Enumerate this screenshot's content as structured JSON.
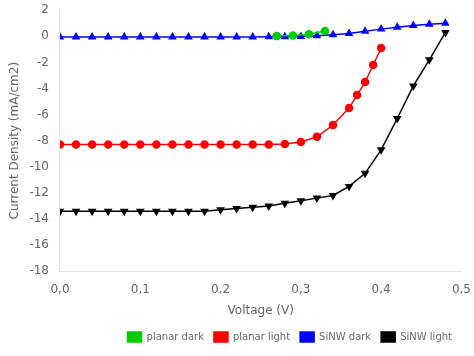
{
  "chart_data": {
    "type": "line",
    "xlabel": "Voltage (V)",
    "ylabel": "Current Density (mA/cm2)",
    "xlim": [
      0,
      0.5
    ],
    "ylim": [
      -18,
      2
    ],
    "xticks": [
      {
        "value": 0,
        "label": "0,0"
      },
      {
        "value": 0.1,
        "label": "0,1"
      },
      {
        "value": 0.2,
        "label": "0,2"
      },
      {
        "value": 0.3,
        "label": "0,3"
      },
      {
        "value": 0.4,
        "label": "0,4"
      },
      {
        "value": 0.5,
        "label": "0,5"
      }
    ],
    "yticks": [
      -18,
      -16,
      -14,
      -12,
      -10,
      -8,
      -6,
      -4,
      -2,
      0,
      2
    ],
    "grid": false,
    "legend": "lower right",
    "series": [
      {
        "name": "planar dark",
        "color": "#00cc00",
        "marker": "circle",
        "x": [
          0.27,
          0.29,
          0.31,
          0.33
        ],
        "values": [
          0.02,
          0.06,
          0.15,
          0.4
        ]
      },
      {
        "name": "planar light",
        "color": "#ff0000",
        "marker": "circle",
        "x": [
          0.0,
          0.02,
          0.04,
          0.06,
          0.08,
          0.1,
          0.12,
          0.14,
          0.16,
          0.18,
          0.2,
          0.22,
          0.24,
          0.26,
          0.28,
          0.3,
          0.32,
          0.34,
          0.36,
          0.37,
          0.38,
          0.39,
          0.4
        ],
        "values": [
          -8.3,
          -8.3,
          -8.3,
          -8.3,
          -8.3,
          -8.3,
          -8.3,
          -8.3,
          -8.3,
          -8.3,
          -8.3,
          -8.3,
          -8.3,
          -8.3,
          -8.25,
          -8.1,
          -7.7,
          -6.8,
          -5.5,
          -4.5,
          -3.5,
          -2.2,
          -0.9
        ]
      },
      {
        "name": "SiNW dark",
        "color": "#0000ff",
        "marker": "triangle-up",
        "x": [
          0.0,
          0.02,
          0.04,
          0.06,
          0.08,
          0.1,
          0.12,
          0.14,
          0.16,
          0.18,
          0.2,
          0.22,
          0.24,
          0.26,
          0.28,
          0.3,
          0.32,
          0.34,
          0.36,
          0.38,
          0.4,
          0.42,
          0.44,
          0.46,
          0.48
        ],
        "values": [
          -0.05,
          -0.05,
          -0.05,
          -0.05,
          -0.05,
          -0.05,
          -0.05,
          -0.05,
          -0.05,
          -0.05,
          -0.05,
          -0.05,
          -0.05,
          -0.04,
          -0.03,
          -0.01,
          0.05,
          0.12,
          0.22,
          0.38,
          0.55,
          0.7,
          0.82,
          0.92,
          1.0
        ]
      },
      {
        "name": "SiNW light",
        "color": "#000000",
        "marker": "triangle-down",
        "x": [
          0.0,
          0.02,
          0.04,
          0.06,
          0.08,
          0.1,
          0.12,
          0.14,
          0.16,
          0.18,
          0.2,
          0.22,
          0.24,
          0.26,
          0.28,
          0.3,
          0.32,
          0.34,
          0.36,
          0.38,
          0.4,
          0.42,
          0.44,
          0.46,
          0.48
        ],
        "values": [
          -13.4,
          -13.4,
          -13.4,
          -13.4,
          -13.4,
          -13.4,
          -13.4,
          -13.4,
          -13.4,
          -13.4,
          -13.3,
          -13.2,
          -13.1,
          -13.0,
          -12.8,
          -12.6,
          -12.4,
          -12.2,
          -11.5,
          -10.5,
          -8.7,
          -6.3,
          -3.8,
          -1.8,
          0.3
        ]
      }
    ]
  }
}
